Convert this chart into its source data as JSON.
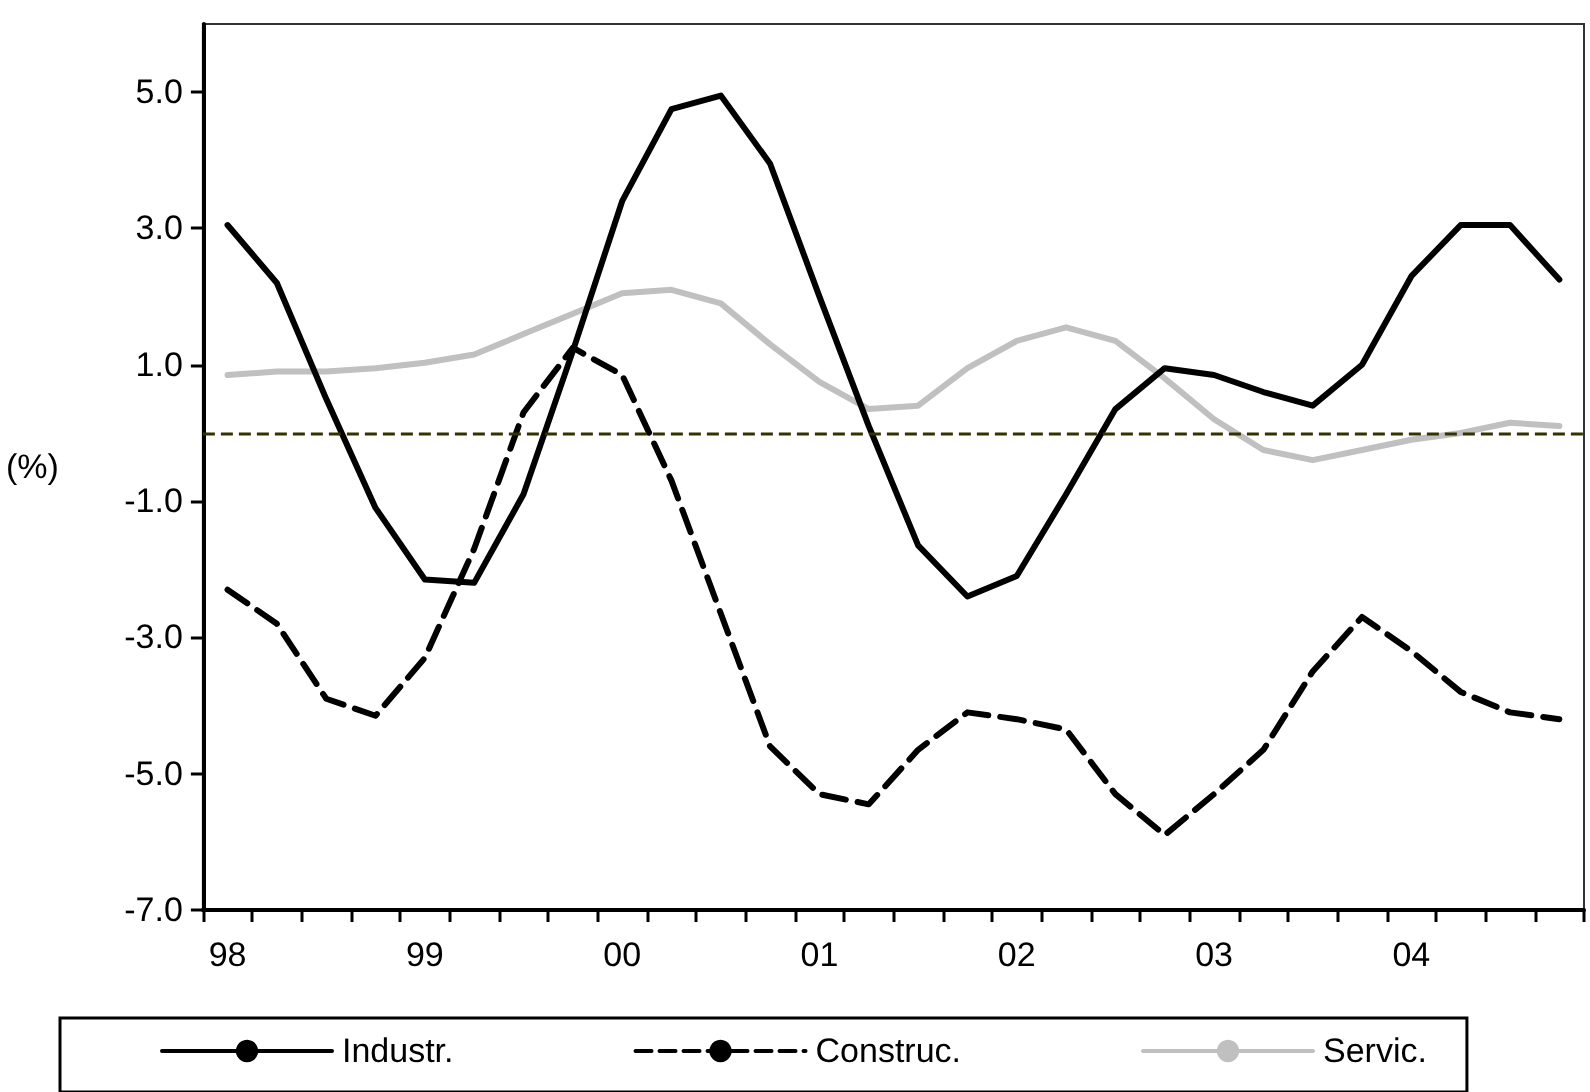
{
  "chart_data": {
    "type": "line",
    "ylabel": "(%)",
    "categories": [
      "98",
      null,
      null,
      null,
      "99",
      null,
      null,
      null,
      "00",
      null,
      null,
      null,
      "01",
      null,
      null,
      null,
      "02",
      null,
      null,
      null,
      "03",
      null,
      null,
      null,
      "04",
      null,
      null,
      null
    ],
    "series": [
      {
        "name": "Industr.",
        "color": "#000000",
        "line_style": "solid",
        "values": [
          3.05,
          2.2,
          0.5,
          -1.1,
          -2.15,
          -2.2,
          -0.9,
          1.2,
          3.4,
          4.75,
          4.95,
          3.95,
          2.0,
          0.1,
          -1.65,
          -2.4,
          -2.1,
          -0.9,
          0.35,
          0.95,
          0.85,
          0.6,
          0.4,
          1.0,
          2.3,
          3.05,
          3.05,
          2.25
        ]
      },
      {
        "name": "Construc.",
        "color": "#000000",
        "line_style": "dashed",
        "values": [
          -2.3,
          -2.8,
          -3.9,
          -4.15,
          -3.3,
          -1.7,
          0.3,
          1.25,
          0.85,
          -0.7,
          -2.65,
          -4.6,
          -5.3,
          -5.45,
          -4.65,
          -4.1,
          -4.2,
          -4.35,
          -5.3,
          -5.9,
          -5.3,
          -4.65,
          -3.5,
          -2.7,
          -3.2,
          -3.8,
          -4.1,
          -4.2
        ]
      },
      {
        "name": "Servic.",
        "color": "#c0c0c0",
        "line_style": "solid",
        "values": [
          0.85,
          0.9,
          0.9,
          0.95,
          1.03,
          1.15,
          1.45,
          1.75,
          2.05,
          2.1,
          1.9,
          1.3,
          0.75,
          0.35,
          0.4,
          0.95,
          1.35,
          1.55,
          1.35,
          0.8,
          0.2,
          -0.25,
          -0.4,
          -0.25,
          -0.1,
          0.0,
          0.15,
          0.1
        ]
      }
    ],
    "ylim": [
      -7,
      6
    ],
    "yticks": [
      {
        "value": -7,
        "label": "-7.0"
      },
      {
        "value": -5,
        "label": "-5.0"
      },
      {
        "value": -3,
        "label": "-3.0"
      },
      {
        "value": -1,
        "label": "-1.0"
      },
      {
        "value": 1,
        "label": "1.0"
      },
      {
        "value": 3,
        "label": "3.0"
      },
      {
        "value": 5,
        "label": "5.0"
      }
    ],
    "ref_lines": [
      {
        "axis": "y",
        "value": 0,
        "color": "#333300",
        "line_style": "dashed"
      }
    ],
    "grid": false,
    "legend": "bottom",
    "marker": "none"
  }
}
